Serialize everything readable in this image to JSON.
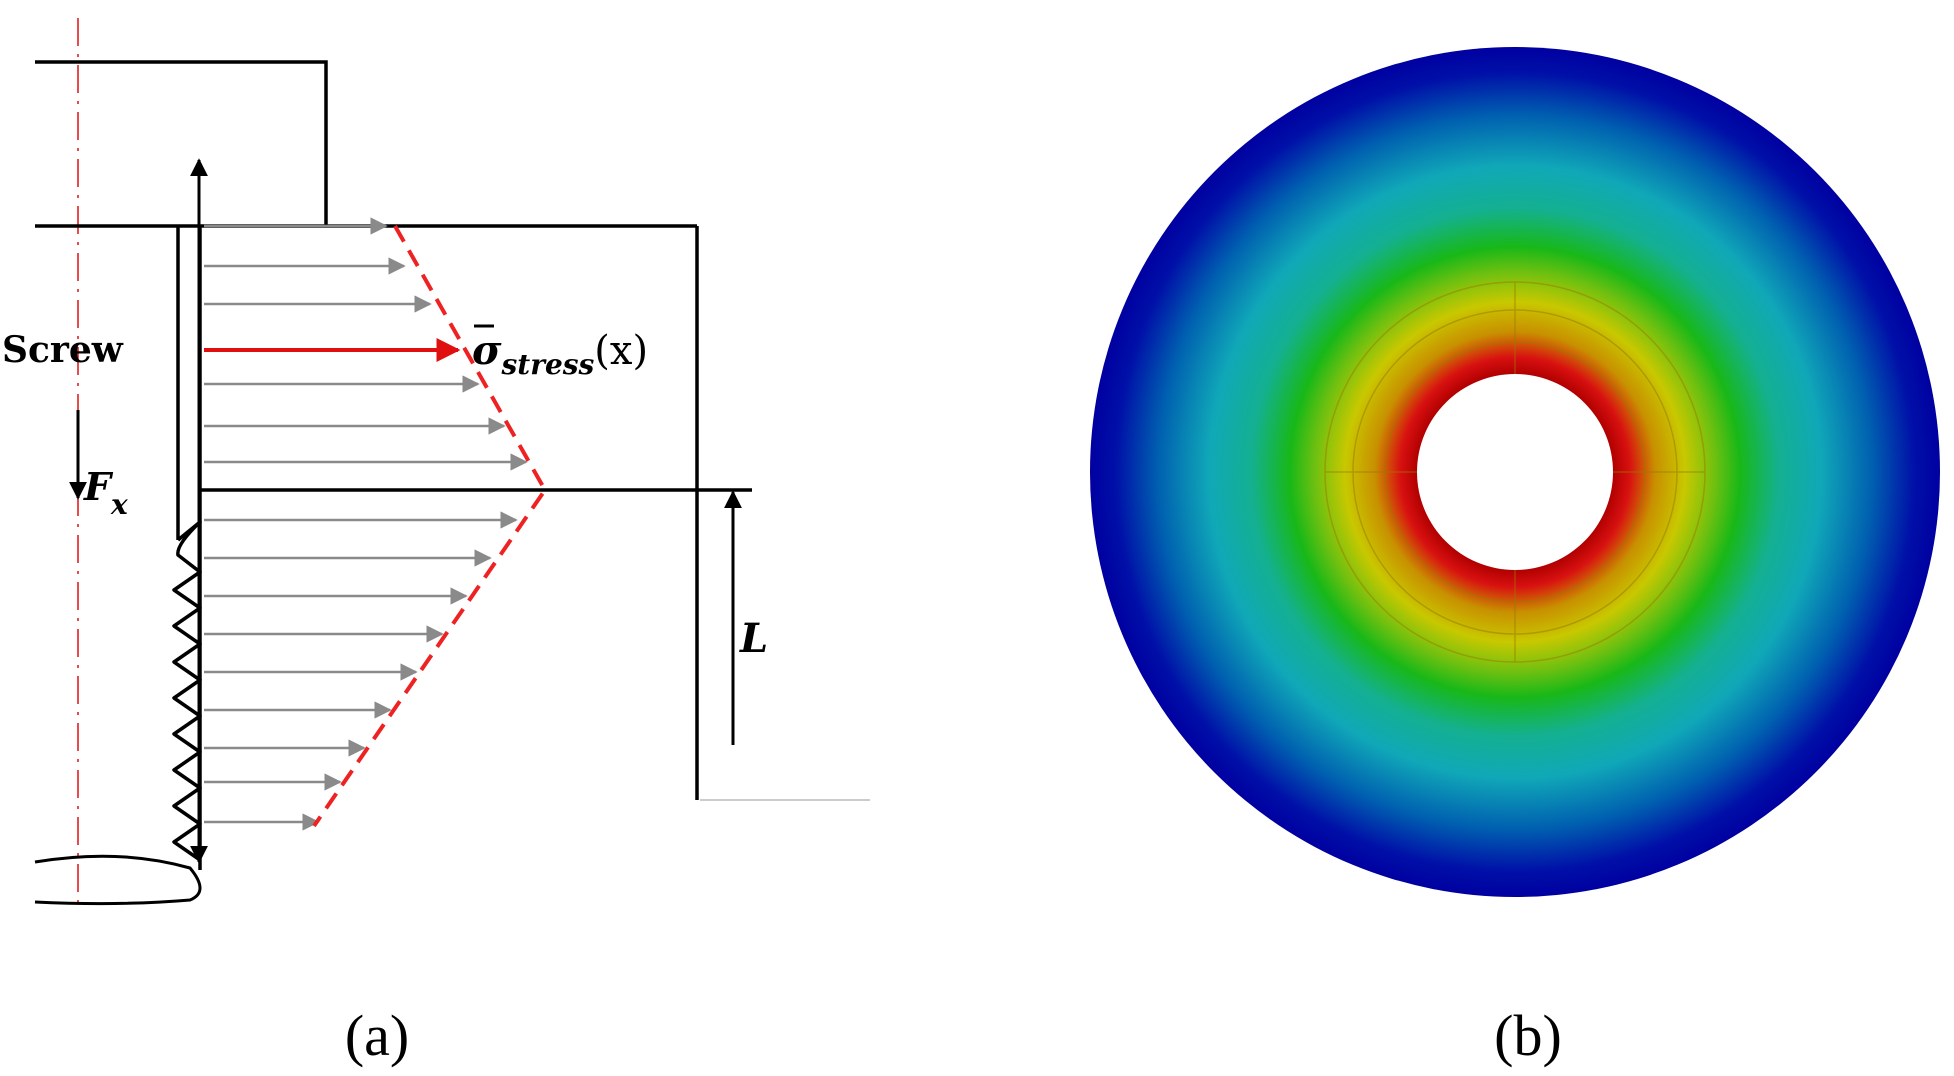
{
  "panel_a": {
    "screw_label": "Screw",
    "force_label": "F",
    "force_subscript": "x",
    "stress_label": "σ",
    "stress_subscript": "stress",
    "stress_argument": "(x)",
    "length_label": "L",
    "caption": "(a)"
  },
  "panel_b": {
    "caption": "(b)"
  },
  "colors": {
    "line": "#000000",
    "centerline": "#e02020",
    "arrow_gray": "#8a8a8a",
    "arrow_red": "#e01010",
    "profile_dashed": "#ee2222",
    "contour_outer": "#0000a8",
    "contour_mid": "#10a8b8",
    "contour_inner_green": "#18b818",
    "contour_yellow": "#c8c800",
    "contour_hot": "#d81010"
  },
  "icons": [
    "force-arrow-icon",
    "dimension-arrow-icon"
  ]
}
